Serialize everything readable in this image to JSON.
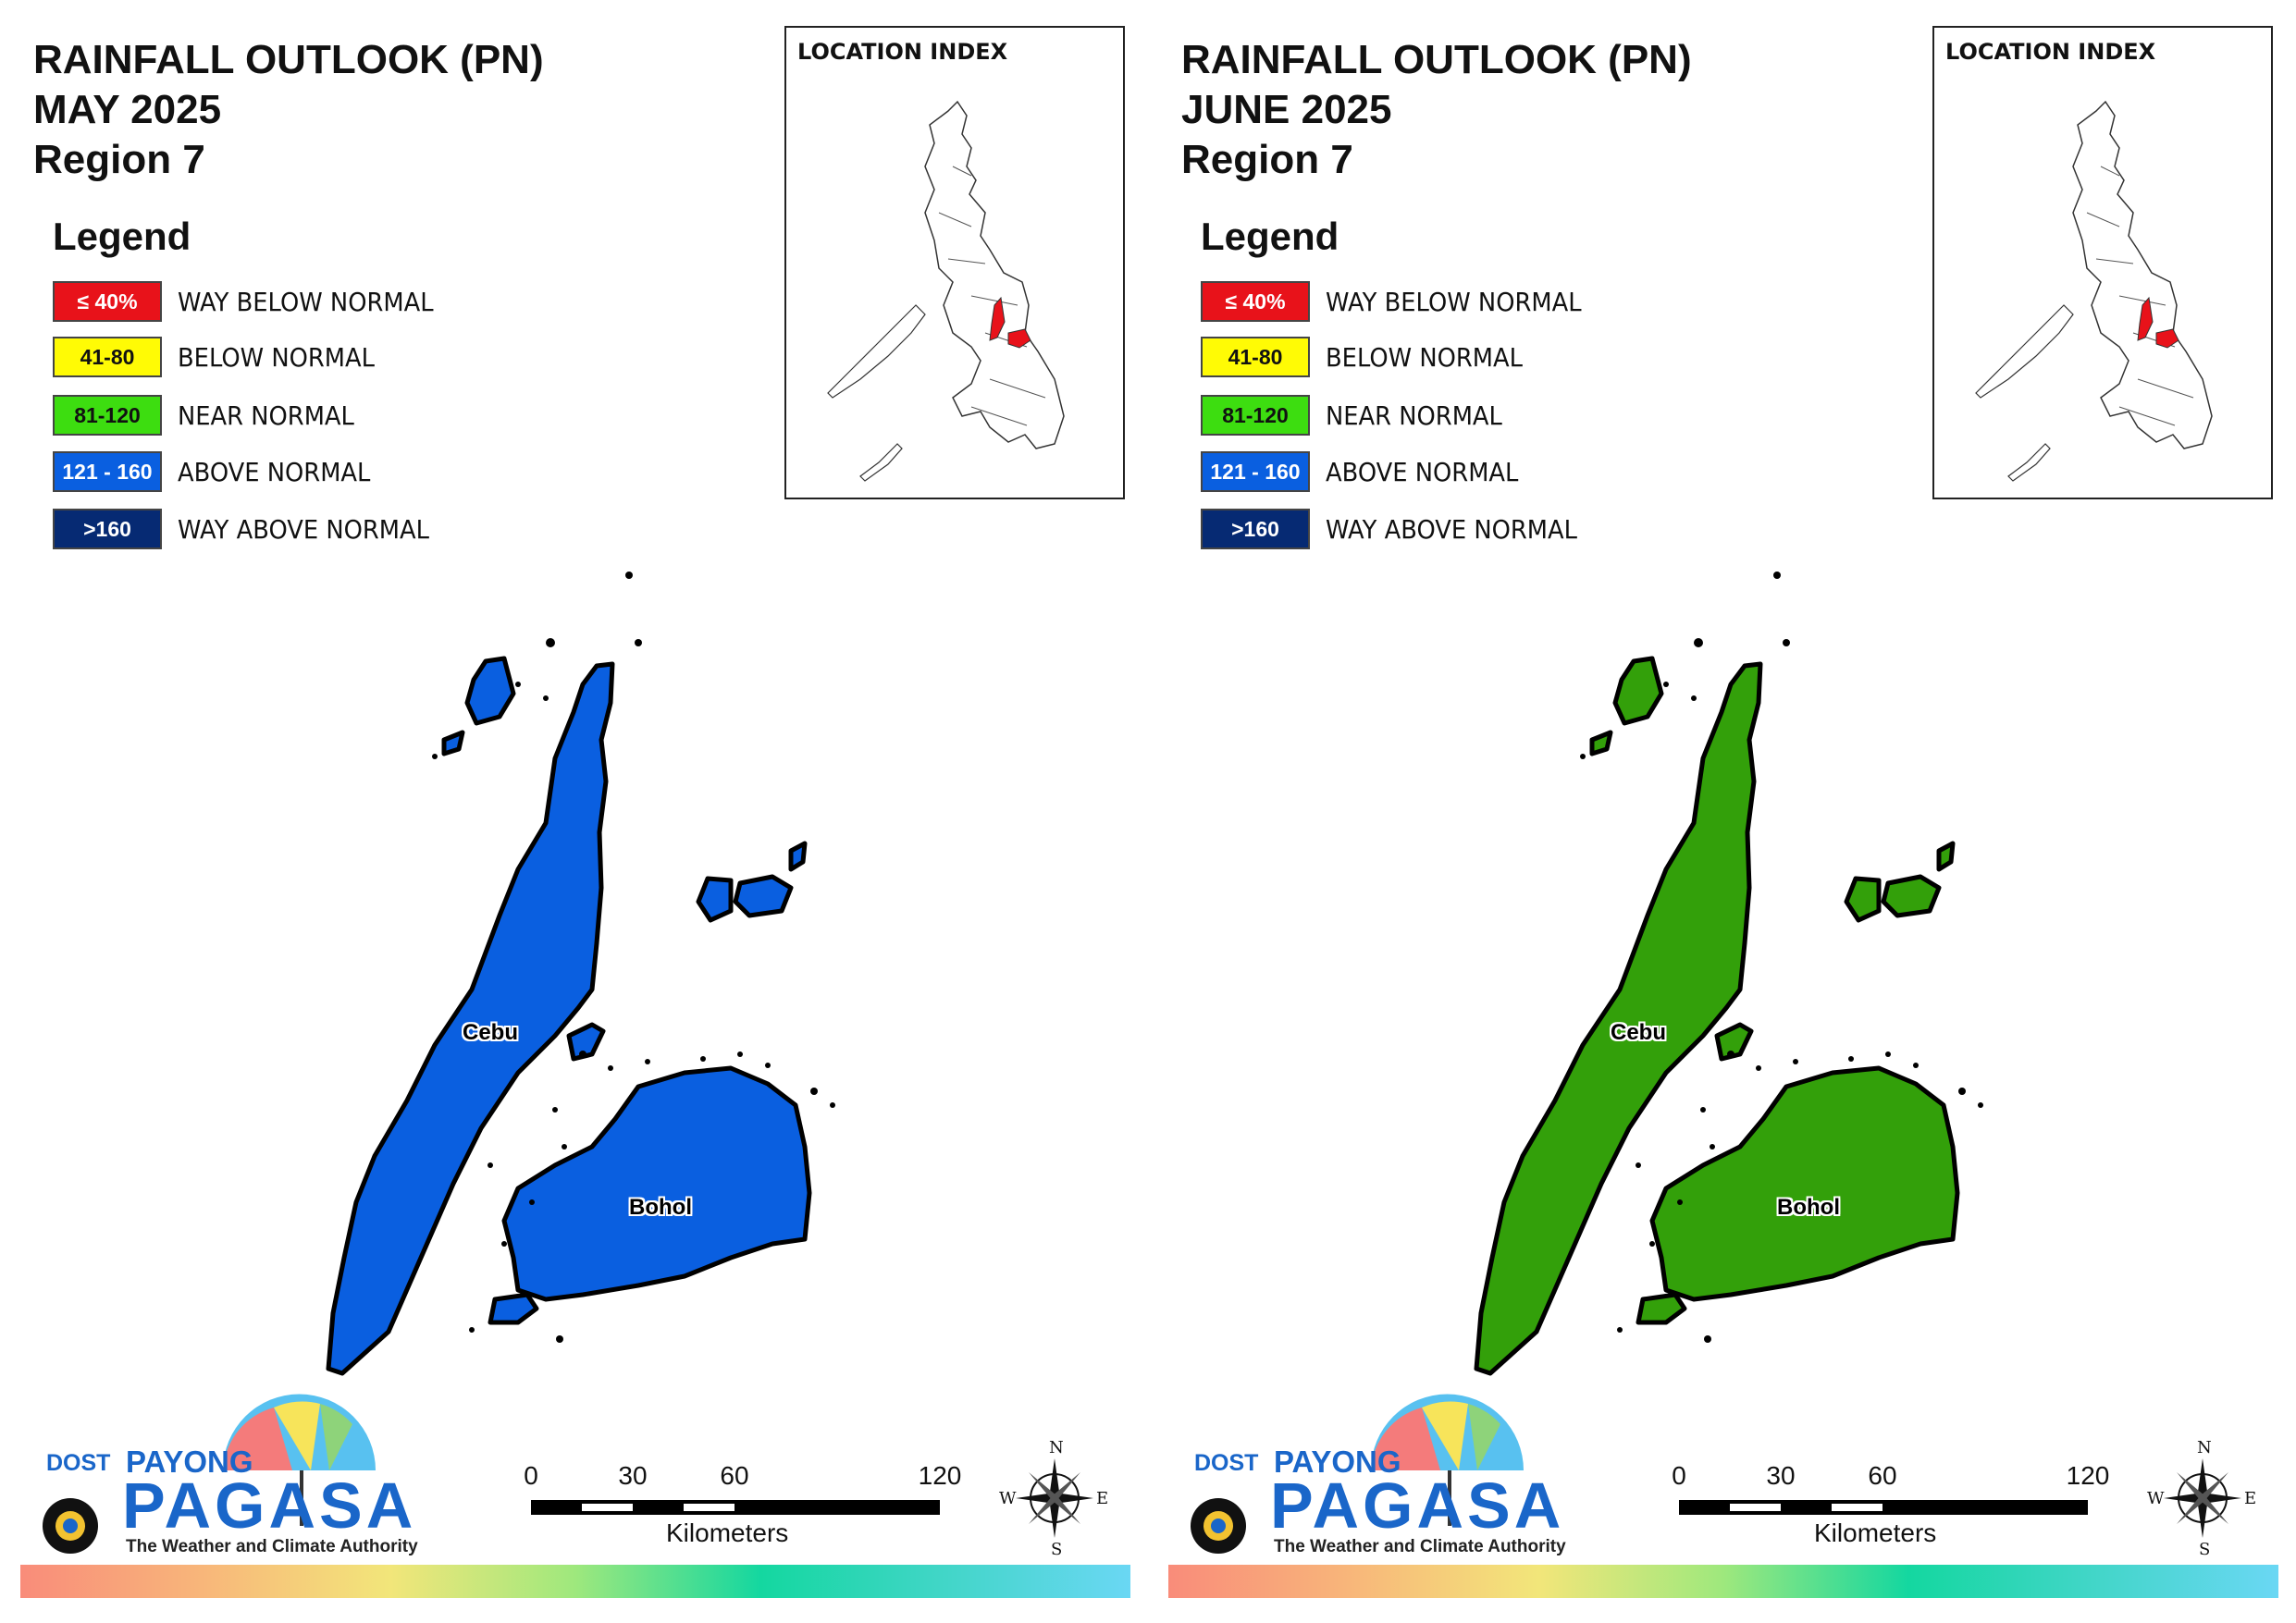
{
  "panels": [
    {
      "title_line1": "RAINFALL OUTLOOK (PN)",
      "title_line2": "MAY 2025",
      "title_line3": "Region 7",
      "fill_color": "#0a5fe0",
      "fill_category": "ABOVE NORMAL"
    },
    {
      "title_line1": "RAINFALL OUTLOOK (PN)",
      "title_line2": "JUNE 2025",
      "title_line3": "Region 7",
      "fill_color": "#33a00a",
      "fill_category": "NEAR NORMAL"
    }
  ],
  "legend": {
    "title": "Legend",
    "items": [
      {
        "range": "≤ 40%",
        "label": "WAY BELOW NORMAL",
        "color": "#e8121a",
        "text_color": "#ffffff"
      },
      {
        "range": "41-80",
        "label": "BELOW NORMAL",
        "color": "#fffb05",
        "text_color": "#111111"
      },
      {
        "range": "81-120",
        "label": "NEAR NORMAL",
        "color": "#3ddd10",
        "text_color": "#111111"
      },
      {
        "range": "121 - 160",
        "label": "ABOVE NORMAL",
        "color": "#0a5fe0",
        "text_color": "#ffffff"
      },
      {
        "range": ">160",
        "label": "WAY ABOVE NORMAL",
        "color": "#062a73",
        "text_color": "#ffffff"
      }
    ]
  },
  "location_index": {
    "title": "LOCATION INDEX",
    "highlight_color": "#e8121a"
  },
  "places": {
    "cebu": "Cebu",
    "bohol": "Bohol"
  },
  "scale_bar": {
    "ticks": [
      "0",
      "30",
      "60",
      "120"
    ],
    "unit": "Kilometers"
  },
  "compass": {
    "n": "N",
    "s": "S",
    "e": "E",
    "w": "W"
  },
  "logo": {
    "dost": "DOST",
    "payong": "PAYONG",
    "pagasa": "PAGASA",
    "tagline": "The Weather and Climate Authority"
  }
}
